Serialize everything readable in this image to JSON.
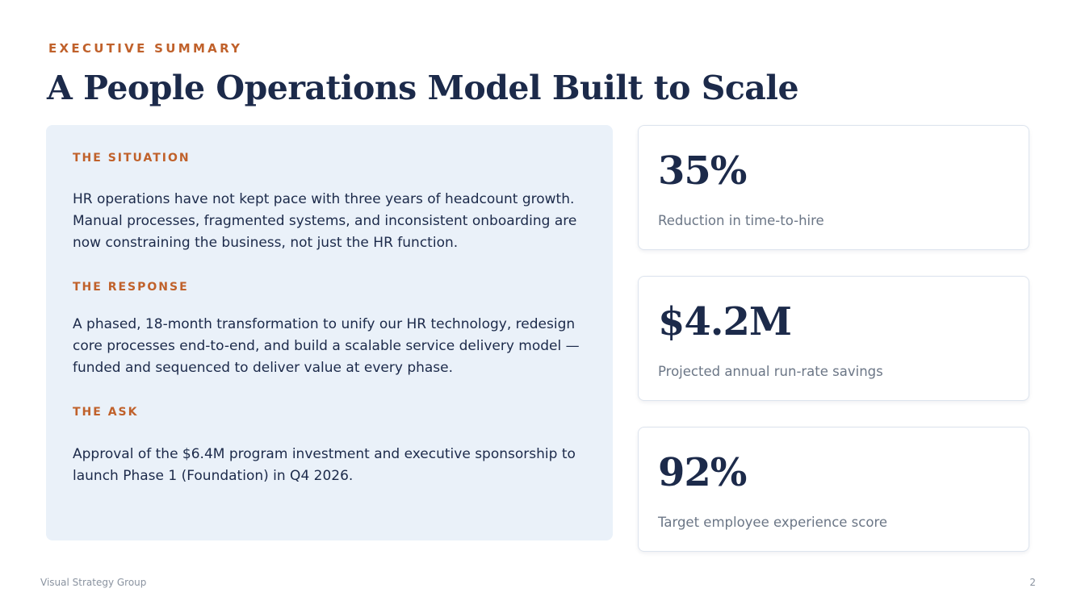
{
  "header": {
    "eyebrow": "EXECUTIVE SUMMARY",
    "title": "A People Operations Model Built to Scale"
  },
  "summary": {
    "sections": [
      {
        "label": "THE SITUATION",
        "body": "HR operations have not kept pace with three years of headcount growth. Manual processes, fragmented systems, and inconsistent onboarding are now constraining the business, not just the HR function."
      },
      {
        "label": "THE RESPONSE",
        "body": "A phased, 18-month transformation to unify our HR technology, redesign core processes end-to-end, and build a scalable service delivery model — funded and sequenced to deliver value at every phase."
      },
      {
        "label": "THE ASK",
        "body": "Approval of the $6.4M program investment and executive sponsorship to launch Phase 1 (Foundation) in Q4 2026."
      }
    ]
  },
  "metrics": [
    {
      "value": "35%",
      "label": "Reduction in time-to-hire"
    },
    {
      "value": "$4.2M",
      "label": "Projected annual run-rate savings"
    },
    {
      "value": "92%",
      "label": "Target employee experience score"
    }
  ],
  "footer": {
    "company": "Visual Strategy Group",
    "page_number": "2"
  },
  "colors": {
    "accent": "#c0612b",
    "navy": "#1c2a4a",
    "panel_background": "#eaf1f9",
    "muted_text": "#6b7686"
  }
}
